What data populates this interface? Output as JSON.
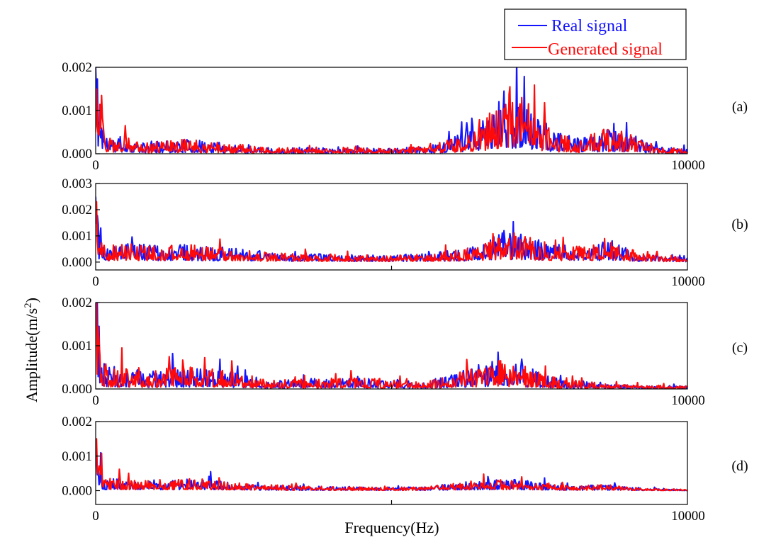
{
  "colors": {
    "real": "#1414ff",
    "generated": "#ff0a0a"
  },
  "legend": {
    "position": "top-right",
    "entries": [
      {
        "label": "Real signal",
        "color_key": "real"
      },
      {
        "label": "Generated signal",
        "color_key": "generated"
      }
    ]
  },
  "axes": {
    "xlabel": "Frequency(Hz)",
    "ylabel_main": "Amplitude(m/s",
    "ylabel_sup": "2",
    "ylabel_end": ")"
  },
  "chart_data": [
    {
      "type": "line",
      "panel": "(a)",
      "xlim": [
        0,
        10000
      ],
      "ylim": [
        0,
        0.002
      ],
      "xticks": [
        "0",
        "10000"
      ],
      "yticks": [
        "0.000",
        "0.001",
        "0.002"
      ],
      "xlabel": "",
      "ylabel": "",
      "profile": {
        "x": [
          0,
          50,
          150,
          300,
          500,
          800,
          1500,
          2200,
          3000,
          4000,
          5000,
          5500,
          6000,
          6400,
          6800,
          7100,
          7400,
          7800,
          8200,
          8600,
          9000,
          9500,
          10000
        ],
        "y": [
          0.0018,
          0.0009,
          0.0003,
          0.00022,
          0.00025,
          0.00015,
          0.0002,
          0.00015,
          8e-05,
          0.0001,
          7e-05,
          0.0001,
          0.0002,
          0.0004,
          0.0007,
          0.0009,
          0.0006,
          0.0003,
          0.0002,
          0.00035,
          0.0003,
          0.0001,
          6e-05
        ]
      },
      "series": [
        {
          "name": "Real signal",
          "color_key": "real",
          "seed": 11,
          "spikes": [
            {
              "x": 0,
              "y": 0.002
            },
            {
              "x": 130,
              "y": 0.00055
            },
            {
              "x": 6900,
              "y": 0.00145
            },
            {
              "x": 9950,
              "y": 0.0002
            }
          ]
        },
        {
          "name": "Generated signal",
          "color_key": "generated",
          "seed": 29,
          "spikes": [
            {
              "x": 10,
              "y": 0.0015
            },
            {
              "x": 100,
              "y": 0.00135
            },
            {
              "x": 500,
              "y": 0.00065
            },
            {
              "x": 7000,
              "y": 0.00155
            },
            {
              "x": 7200,
              "y": 0.0013
            }
          ]
        }
      ]
    },
    {
      "type": "line",
      "panel": "(b)",
      "xlim": [
        0,
        10000
      ],
      "ylim": [
        -0.0003,
        0.003
      ],
      "xticks": [
        "0",
        "10000"
      ],
      "yticks": [
        "0.000",
        "0.001",
        "0.002",
        "0.003"
      ],
      "xlabel": "",
      "ylabel": "",
      "profile": {
        "x": [
          0,
          50,
          150,
          400,
          800,
          1500,
          2200,
          3000,
          4000,
          5000,
          5500,
          6000,
          6500,
          6900,
          7300,
          7800,
          8300,
          8700,
          9200,
          10000
        ],
        "y": [
          0.002,
          0.0008,
          0.00035,
          0.00045,
          0.0004,
          0.0004,
          0.00035,
          0.0002,
          0.00018,
          0.00015,
          0.0002,
          0.00025,
          0.0004,
          0.0007,
          0.0006,
          0.0004,
          0.00035,
          0.0005,
          0.0002,
          0.0001
        ]
      },
      "series": [
        {
          "name": "Real signal",
          "color_key": "real",
          "seed": 41,
          "spikes": [
            {
              "x": 0,
              "y": 0.0025
            },
            {
              "x": 80,
              "y": 0.0013
            },
            {
              "x": 6900,
              "y": 0.0012
            }
          ]
        },
        {
          "name": "Generated signal",
          "color_key": "generated",
          "seed": 57,
          "spikes": [
            {
              "x": 10,
              "y": 0.0023
            },
            {
              "x": 2100,
              "y": 0.00088
            },
            {
              "x": 8600,
              "y": 0.0009
            }
          ]
        }
      ]
    },
    {
      "type": "line",
      "panel": "(c)",
      "xlim": [
        0,
        10000
      ],
      "ylim": [
        0,
        0.002
      ],
      "xticks": [
        "0",
        "10000"
      ],
      "yticks": [
        "0.000",
        "0.001",
        "0.002"
      ],
      "xlabel": "",
      "ylabel": "",
      "profile": {
        "x": [
          0,
          50,
          150,
          400,
          800,
          1300,
          1800,
          2300,
          3000,
          3800,
          4500,
          5000,
          5500,
          6000,
          6500,
          6900,
          7300,
          7800,
          8300,
          9000,
          10000
        ],
        "y": [
          0.002,
          0.0008,
          0.00035,
          0.0003,
          0.00025,
          0.0003,
          0.0003,
          0.00025,
          0.00012,
          0.00015,
          0.00018,
          0.00012,
          0.0001,
          0.0002,
          0.00035,
          0.0004,
          0.0003,
          0.00015,
          0.0001,
          6e-05,
          4e-05
        ]
      },
      "series": [
        {
          "name": "Real signal",
          "color_key": "real",
          "seed": 73,
          "spikes": [
            {
              "x": 0,
              "y": 0.0021
            },
            {
              "x": 60,
              "y": 0.00145
            },
            {
              "x": 1300,
              "y": 0.00082
            },
            {
              "x": 6800,
              "y": 0.00085
            }
          ]
        },
        {
          "name": "Generated signal",
          "color_key": "generated",
          "seed": 89,
          "spikes": [
            {
              "x": 10,
              "y": 0.002
            },
            {
              "x": 450,
              "y": 0.00095
            },
            {
              "x": 1250,
              "y": 0.00075
            },
            {
              "x": 2300,
              "y": 0.00065
            }
          ]
        }
      ]
    },
    {
      "type": "line",
      "panel": "(d)",
      "xlim": [
        0,
        10000
      ],
      "ylim": [
        -0.0004,
        0.002
      ],
      "xticks": [
        "0",
        "10000"
      ],
      "yticks": [
        "0.000",
        "0.001",
        "0.002"
      ],
      "xlabel": "",
      "ylabel": "",
      "profile": {
        "x": [
          0,
          50,
          150,
          400,
          800,
          1300,
          1800,
          2500,
          3500,
          4500,
          5500,
          6000,
          6500,
          7000,
          7500,
          8000,
          8500,
          9000,
          10000
        ],
        "y": [
          0.0014,
          0.0006,
          0.0002,
          0.00022,
          0.00018,
          0.0002,
          0.0002,
          0.00012,
          8e-05,
          6e-05,
          6e-05,
          0.00012,
          0.00018,
          0.0002,
          0.00015,
          8e-05,
          0.00012,
          6e-05,
          2e-05
        ]
      },
      "series": [
        {
          "name": "Real signal",
          "color_key": "real",
          "seed": 101,
          "spikes": [
            {
              "x": 0,
              "y": 0.0015
            },
            {
              "x": 90,
              "y": 0.0011
            },
            {
              "x": 1950,
              "y": 0.00055
            }
          ]
        },
        {
          "name": "Generated signal",
          "color_key": "generated",
          "seed": 113,
          "spikes": [
            {
              "x": 10,
              "y": 0.0015
            },
            {
              "x": 100,
              "y": 0.00108
            },
            {
              "x": 400,
              "y": 0.00062
            },
            {
              "x": 7200,
              "y": 0.0004
            }
          ]
        }
      ]
    }
  ]
}
